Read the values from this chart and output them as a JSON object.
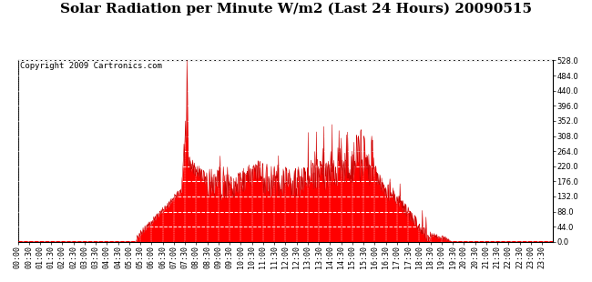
{
  "title": "Solar Radiation per Minute W/m2 (Last 24 Hours) 20090515",
  "copyright_text": "Copyright 2009 Cartronics.com",
  "fill_color": "#ff0000",
  "line_color": "#cc0000",
  "background_color": "#ffffff",
  "dashed_line_color": "#ff0000",
  "y_min": 0.0,
  "y_max": 528.0,
  "y_ticks": [
    0.0,
    44.0,
    88.0,
    132.0,
    176.0,
    220.0,
    264.0,
    308.0,
    352.0,
    396.0,
    440.0,
    484.0,
    528.0
  ],
  "title_fontsize": 11,
  "copyright_fontsize": 6.5,
  "tick_fontsize": 6.0
}
